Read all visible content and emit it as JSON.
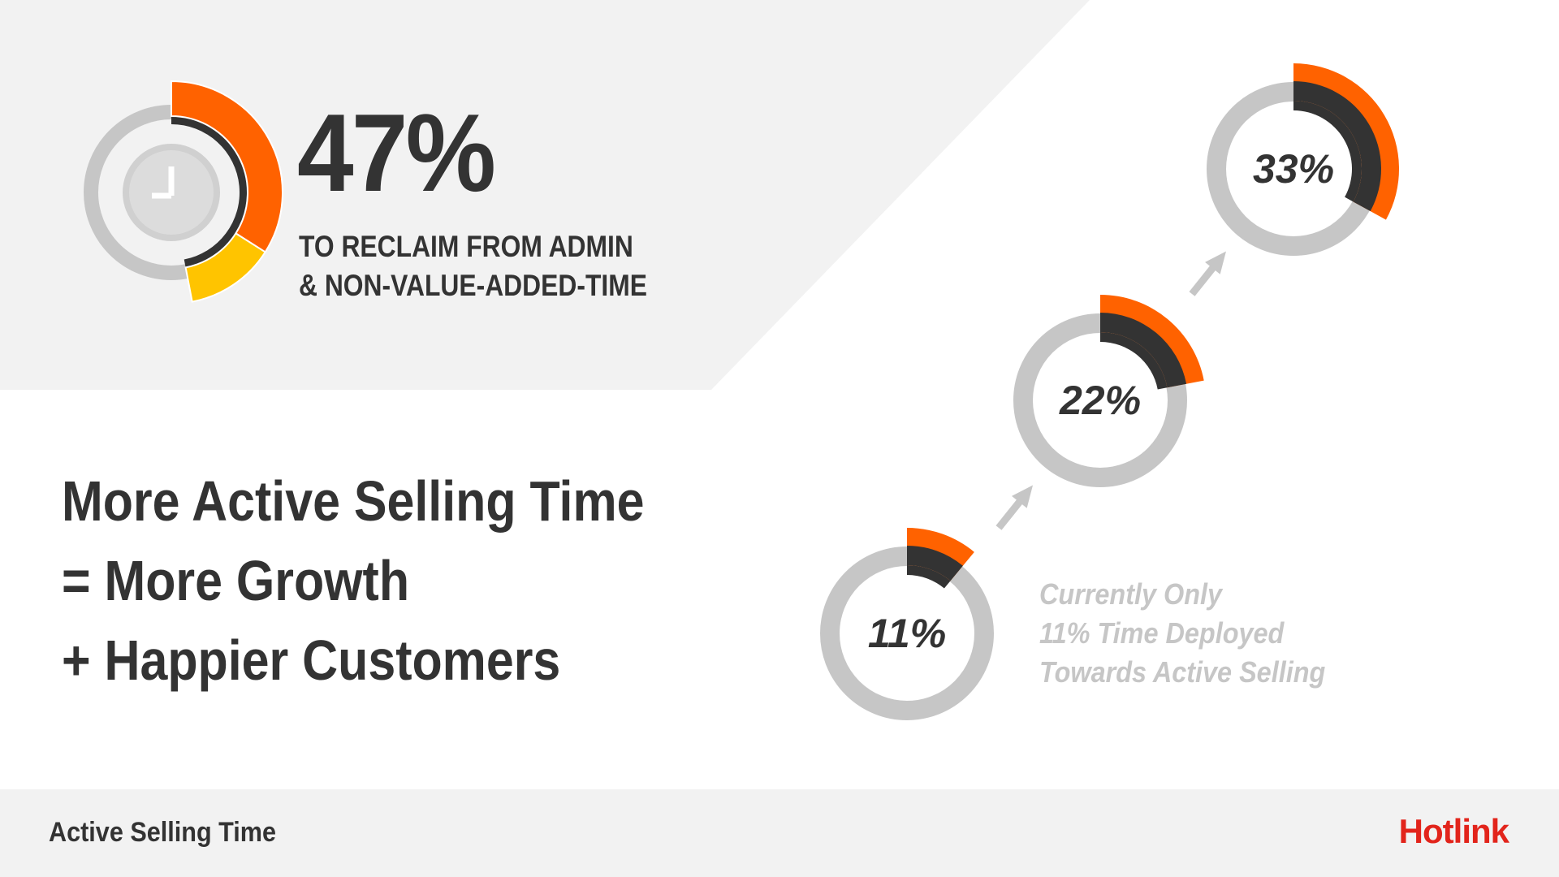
{
  "colors": {
    "panel_gray": "#f2f2f2",
    "ring_gray": "#c6c6c6",
    "dark": "#333333",
    "orange": "#ff6200",
    "yellow": "#ffc400",
    "brand_red": "#e2241b"
  },
  "headline": {
    "percent": "47%",
    "line1": "TO RECLAIM FROM ADMIN",
    "line2": "& NON-VALUE-ADDED-TIME",
    "icon": "clock-icon"
  },
  "tagline": {
    "line1": "More Active Selling Time",
    "line2": "= More Growth",
    "line3": "+ Happier Customers"
  },
  "note": {
    "line1": "Currently Only",
    "line2": "11% Time Deployed",
    "line3": "Towards Active Selling"
  },
  "chart_data": [
    {
      "type": "pie",
      "name_shown": "",
      "value": 47,
      "value_label": "47%",
      "segments": [
        {
          "color": "orange",
          "share_of_circle": 0.34
        },
        {
          "color": "yellow",
          "share_of_circle": 0.13
        }
      ]
    },
    {
      "type": "pie",
      "values": [
        11,
        22,
        33
      ],
      "labels": [
        "11%",
        "22%",
        "33%"
      ]
    }
  ],
  "footer": {
    "title": "Active Selling Time",
    "logo": "Hotlink"
  }
}
